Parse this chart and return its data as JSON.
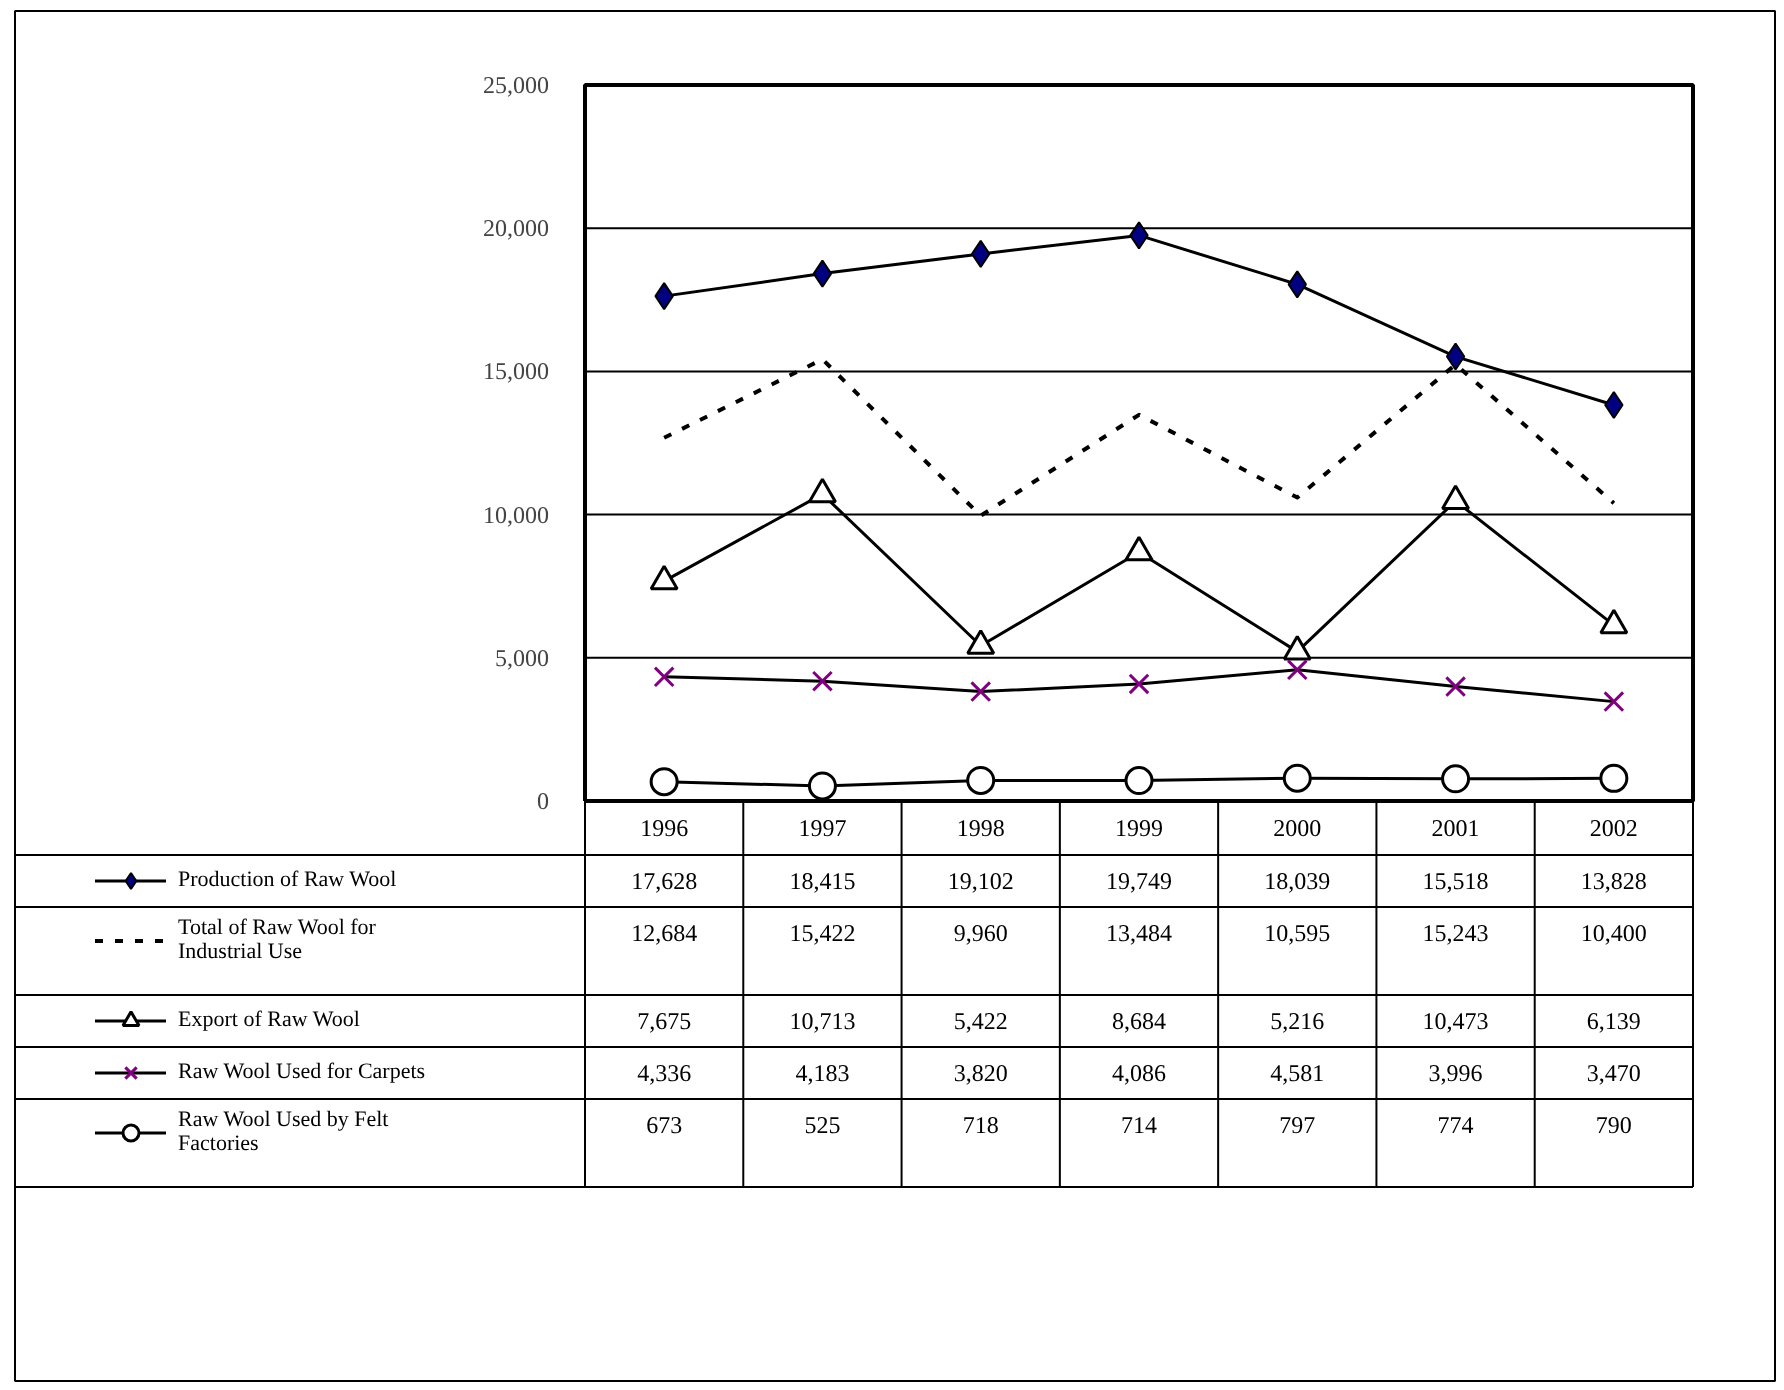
{
  "chart_data": {
    "type": "line",
    "categories": [
      "1996",
      "1997",
      "1998",
      "1999",
      "2000",
      "2001",
      "2002"
    ],
    "series": [
      {
        "name": "Production of Raw Wool",
        "color": "#000080",
        "marker": "diamond",
        "line_style": "solid",
        "values": [
          17628,
          18415,
          19102,
          19749,
          18039,
          15518,
          13828
        ],
        "value_labels": [
          "17,628",
          "18,415",
          "19,102",
          "19,749",
          "18,039",
          "15,518",
          "13,828"
        ]
      },
      {
        "name": "Total of Raw Wool for Industrial Use",
        "color": "#000000",
        "marker": "none",
        "line_style": "dotted",
        "values": [
          12684,
          15422,
          9960,
          13484,
          10595,
          15243,
          10400
        ],
        "value_labels": [
          "12,684",
          "15,422",
          "9,960",
          "13,484",
          "10,595",
          "15,243",
          "10,400"
        ]
      },
      {
        "name": "Export of Raw Wool",
        "color": "#000000",
        "marker": "triangle",
        "line_style": "solid",
        "values": [
          7675,
          10713,
          5422,
          8684,
          5216,
          10473,
          6139
        ],
        "value_labels": [
          "7,675",
          "10,713",
          "5,422",
          "8,684",
          "5,216",
          "10,473",
          "6,139"
        ]
      },
      {
        "name": "Raw Wool Used for Carpets",
        "color": "#800080",
        "marker": "cross",
        "line_style": "solid",
        "values": [
          4336,
          4183,
          3820,
          4086,
          4581,
          3996,
          3470
        ],
        "value_labels": [
          "4,336",
          "4,183",
          "3,820",
          "4,086",
          "4,581",
          "3,996",
          "3,470"
        ]
      },
      {
        "name": "Raw Wool Used by Felt Factories",
        "color": "#000000",
        "marker": "circle",
        "line_style": "solid",
        "values": [
          673,
          525,
          718,
          714,
          797,
          774,
          790
        ],
        "value_labels": [
          "673",
          "525",
          "718",
          "714",
          "797",
          "774",
          "790"
        ]
      }
    ],
    "ylim": [
      0,
      25000
    ],
    "yticks": [
      0,
      {
        "value": 5000,
        "label": "5,000"
      },
      {
        "value": 10000,
        "label": "10,000"
      },
      {
        "value": 15000,
        "label": "15,000"
      },
      {
        "value": 20000,
        "label": "20,000"
      },
      {
        "value": 25000,
        "label": "25,000"
      }
    ],
    "grid": "y",
    "legend": "bottom"
  }
}
